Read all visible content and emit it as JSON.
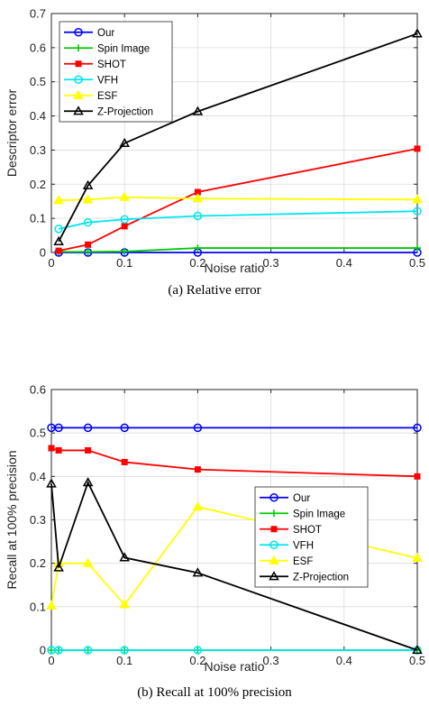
{
  "chart_data": [
    {
      "type": "line",
      "caption": "(a) Relative error",
      "xlabel": "Noise ratio",
      "ylabel": "Descriptor error",
      "xlim": [
        0,
        0.5
      ],
      "ylim": [
        0,
        0.7
      ],
      "xticks": [
        0,
        0.1,
        0.2,
        0.3,
        0.4,
        0.5
      ],
      "yticks": [
        0,
        0.1,
        0.2,
        0.3,
        0.4,
        0.5,
        0.6,
        0.7
      ],
      "xtick_labels": [
        "0",
        "0.1",
        "0.2",
        "0.3",
        "0.4",
        "0.5"
      ],
      "ytick_labels": [
        "0",
        "0.1",
        "0.2",
        "0.3",
        "0.4",
        "0.5",
        "0.6",
        "0.7"
      ],
      "grid": true,
      "legend_position": "top-left",
      "x": [
        0.01,
        0.05,
        0.1,
        0.2,
        0.5
      ],
      "series": [
        {
          "name": "Our",
          "color": "#0000ff",
          "marker": "circle",
          "values": [
            0.0,
            0.0,
            0.0,
            0.0,
            0.0
          ]
        },
        {
          "name": "Spin Image",
          "color": "#00cc00",
          "marker": "plus",
          "values": [
            0.002,
            0.002,
            0.003,
            0.013,
            0.013
          ]
        },
        {
          "name": "SHOT",
          "color": "#ff0000",
          "marker": "square",
          "values": [
            0.005,
            0.023,
            0.077,
            0.177,
            0.304
          ]
        },
        {
          "name": "VFH",
          "color": "#00e5ee",
          "marker": "circle",
          "values": [
            0.069,
            0.088,
            0.097,
            0.107,
            0.121
          ]
        },
        {
          "name": "ESF",
          "color": "#ffff00",
          "marker": "triangle",
          "values": [
            0.153,
            0.155,
            0.162,
            0.158,
            0.155
          ]
        },
        {
          "name": "Z-Projection",
          "color": "#000000",
          "marker": "triangle",
          "values": [
            0.032,
            0.196,
            0.32,
            0.413,
            0.641
          ]
        }
      ]
    },
    {
      "type": "line",
      "caption": "(b) Recall at 100% precision",
      "xlabel": "Noise ratio",
      "ylabel": "Recall at 100% precision",
      "xlim": [
        0,
        0.5
      ],
      "ylim": [
        0,
        0.6
      ],
      "xticks": [
        0,
        0.1,
        0.2,
        0.3,
        0.4,
        0.5
      ],
      "yticks": [
        0,
        0.1,
        0.2,
        0.3,
        0.4,
        0.5,
        0.6
      ],
      "xtick_labels": [
        "0",
        "0.1",
        "0.2",
        "0.3",
        "0.4",
        "0.5"
      ],
      "ytick_labels": [
        "0",
        "0.1",
        "0.2",
        "0.3",
        "0.4",
        "0.5",
        "0.6"
      ],
      "grid": true,
      "legend_position": "center-right",
      "x": [
        0.0,
        0.01,
        0.05,
        0.1,
        0.2,
        0.5
      ],
      "series": [
        {
          "name": "Our",
          "color": "#0000ff",
          "marker": "circle",
          "values": [
            0.512,
            0.512,
            0.512,
            0.512,
            0.512,
            0.512
          ]
        },
        {
          "name": "Spin Image",
          "color": "#00cc00",
          "marker": "plus",
          "values": [
            0.0,
            0.0,
            0.0,
            0.0,
            0.0,
            0.0
          ]
        },
        {
          "name": "SHOT",
          "color": "#ff0000",
          "marker": "square",
          "values": [
            0.465,
            0.46,
            0.46,
            0.433,
            0.416,
            0.4
          ]
        },
        {
          "name": "VFH",
          "color": "#00e5ee",
          "marker": "circle",
          "values": [
            0.0,
            0.0,
            0.0,
            0.0,
            0.0,
            0.0
          ]
        },
        {
          "name": "ESF",
          "color": "#ffff00",
          "marker": "triangle",
          "values": [
            0.102,
            0.2,
            0.2,
            0.105,
            0.33,
            0.212
          ]
        },
        {
          "name": "Z-Projection",
          "color": "#000000",
          "marker": "triangle",
          "values": [
            0.383,
            0.19,
            0.386,
            0.213,
            0.178,
            0.0
          ]
        }
      ]
    }
  ]
}
